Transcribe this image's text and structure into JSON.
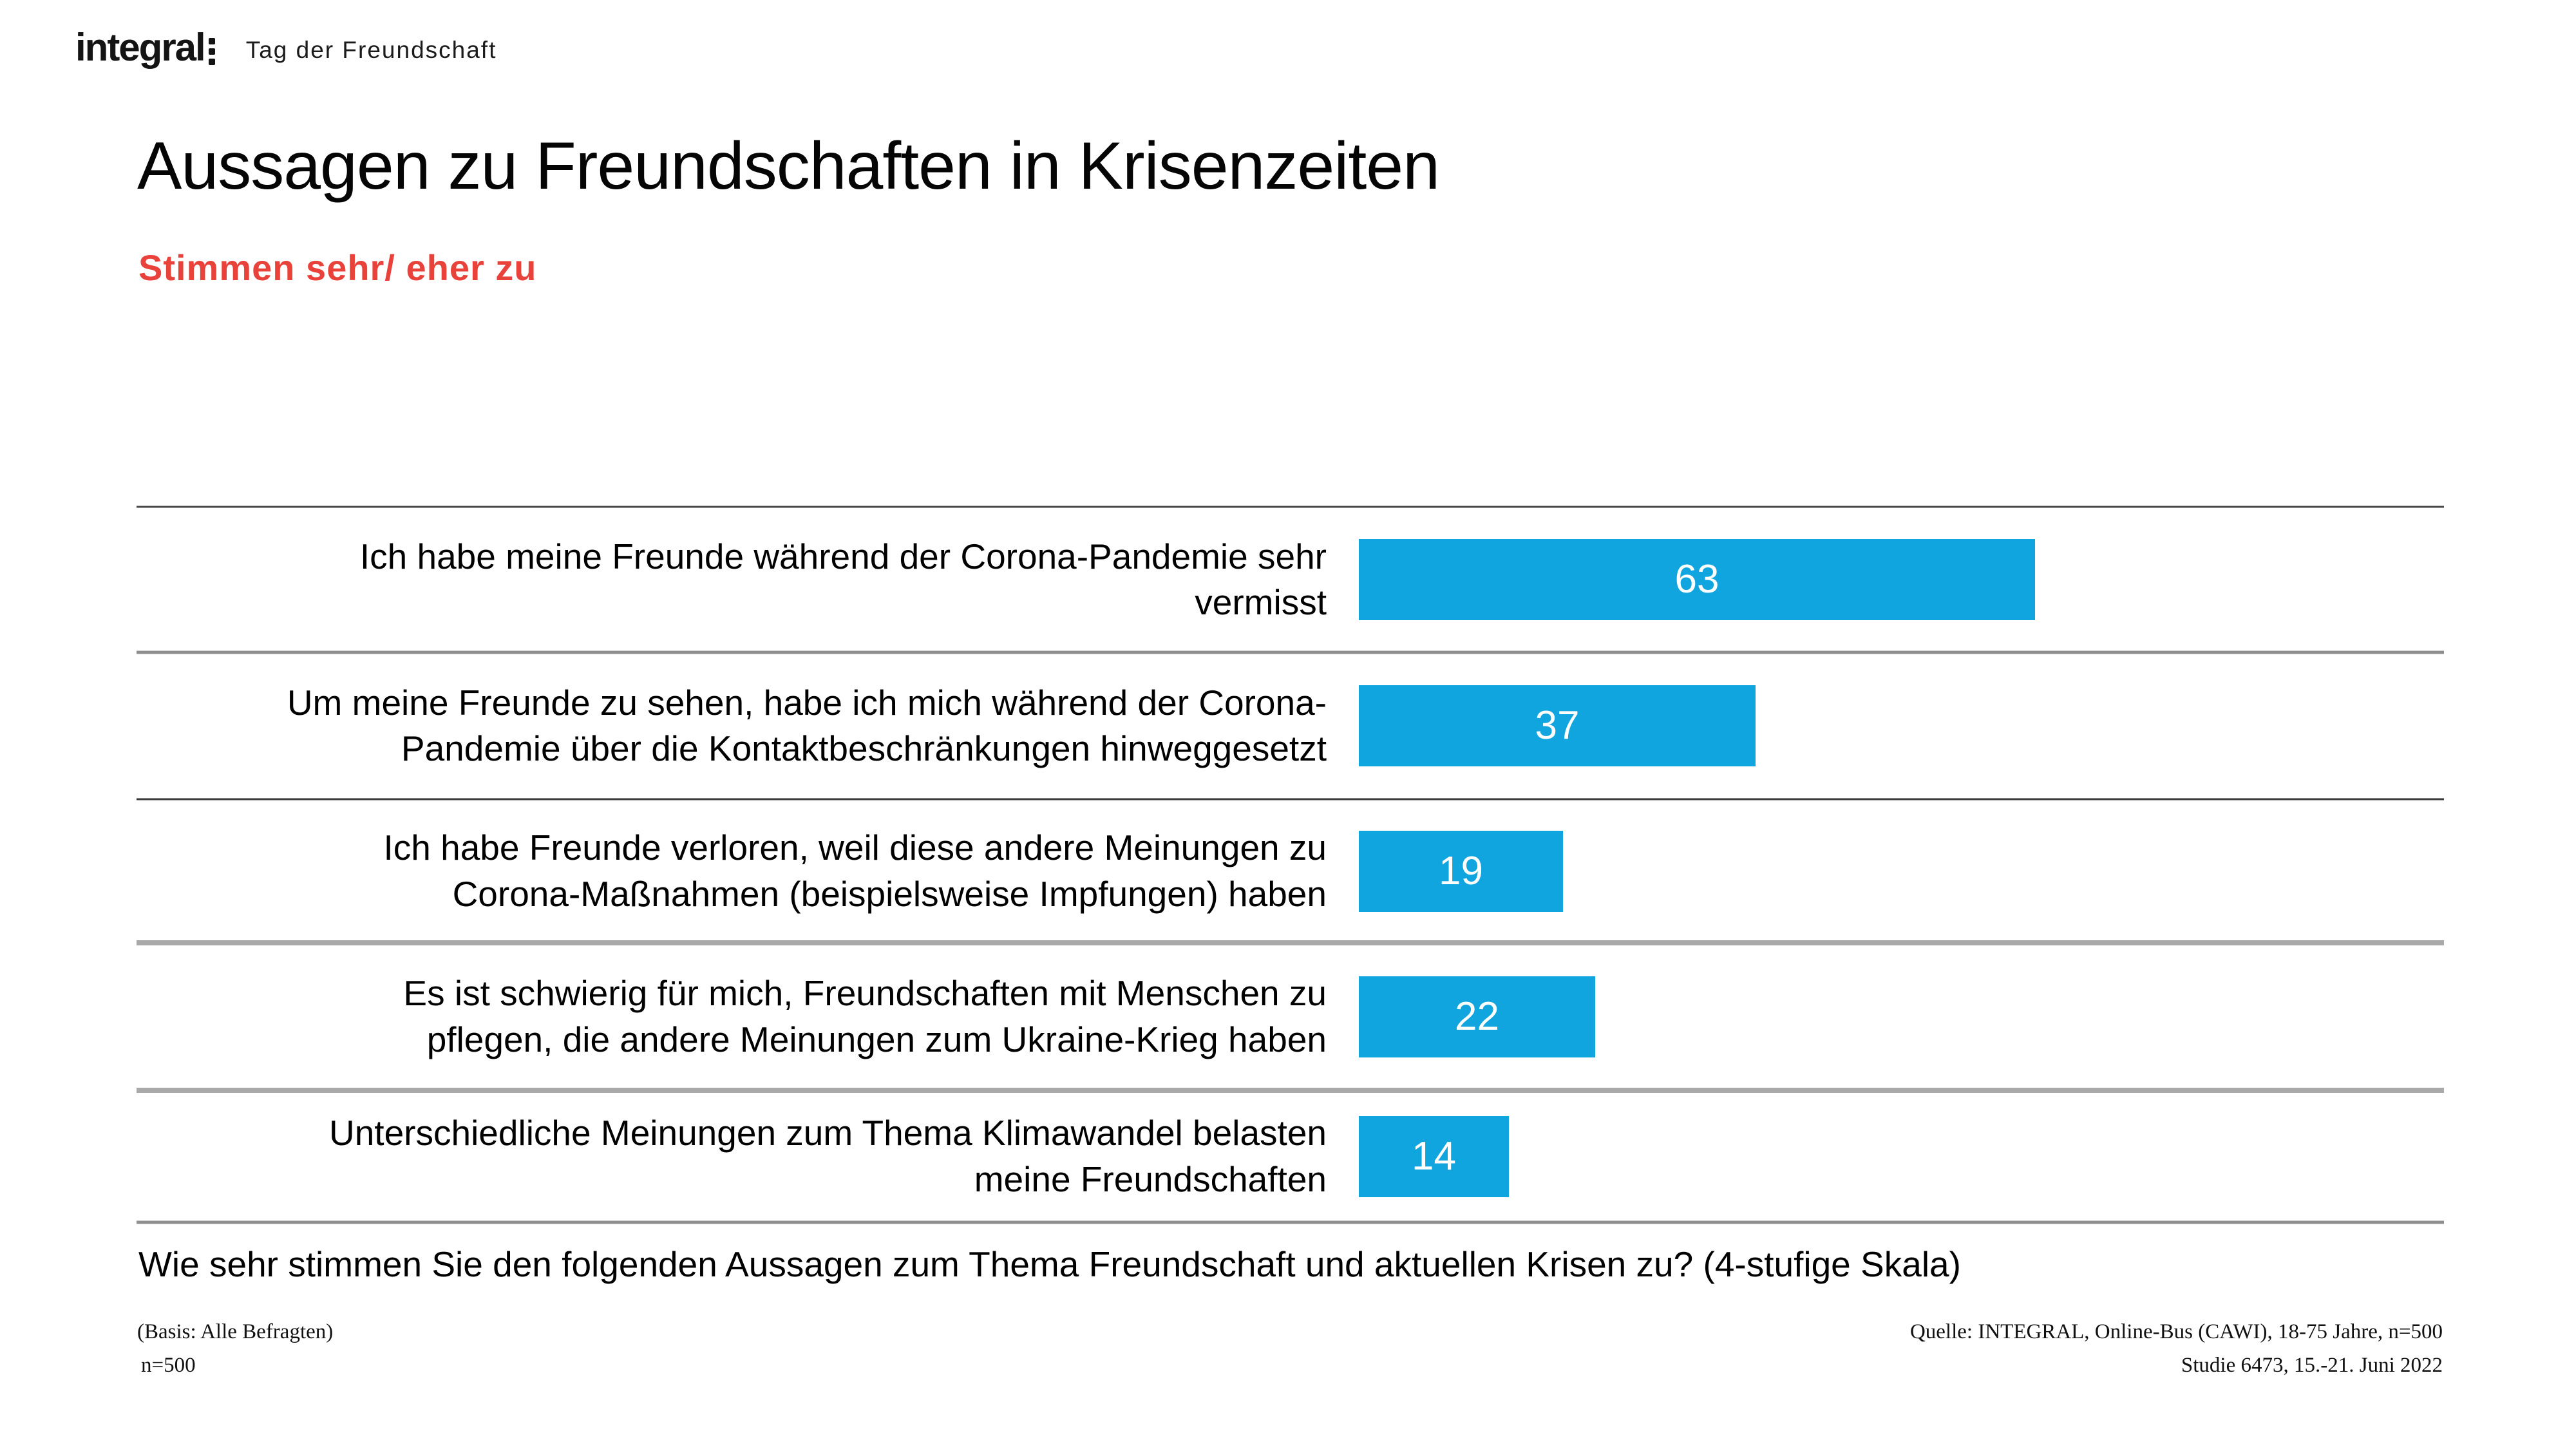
{
  "header": {
    "logo_text": "integral",
    "project_title": "Tag der Freundschaft"
  },
  "chart_data": {
    "type": "bar",
    "orientation": "horizontal",
    "title": "Aussagen zu Freundschaften in Krisenzeiten",
    "subtitle": "Stimmen sehr/ eher zu",
    "categories": [
      "Ich habe meine Freunde während der Corona-Pandemie sehr\nvermisst",
      "Um meine Freunde zu sehen, habe ich mich während der Corona-\nPandemie über die Kontaktbeschränkungen hinweggesetzt",
      "Ich habe Freunde verloren, weil diese andere Meinungen zu\nCorona-Maßnahmen (beispielsweise Impfungen) haben",
      "Es ist schwierig für mich, Freundschaften mit Menschen zu\npflegen, die andere Meinungen zum Ukraine-Krieg haben",
      "Unterschiedliche Meinungen zum Thema Klimawandel belasten\nmeine Freundschaften"
    ],
    "values": [
      63,
      37,
      19,
      22,
      14
    ],
    "xlim": [
      0,
      100
    ],
    "legend": "none",
    "grid": "horizontal-row-separators",
    "bar_color": "#10A5DE",
    "value_label_color": "#ffffff",
    "subtitle_color": "#E8423B"
  },
  "question": "Wie sehr stimmen Sie den folgenden Aussagen zum Thema Freundschaft und aktuellen Krisen zu? (4-stufige Skala)",
  "footer": {
    "basis": "(Basis: Alle Befragten)",
    "sample": "n=500",
    "source_line1": "Quelle: INTEGRAL, Online-Bus (CAWI), 18-75 Jahre, n=500",
    "source_line2": "Studie 6473, 15.-21. Juni 2022"
  }
}
